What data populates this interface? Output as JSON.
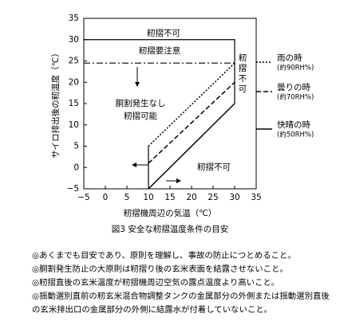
{
  "chart_data": {
    "type": "line",
    "title": "図3 安全な籾摺温度条件の目安",
    "x_label": "籾摺機周辺の気温（℃）",
    "y_label": "サイロ排出後の籾温度（℃）",
    "xlim": [
      -5,
      35
    ],
    "ylim": [
      -5,
      35
    ],
    "xticks": [
      {
        "value": -5,
        "label": "−5"
      },
      0,
      5,
      10,
      15,
      20,
      25,
      30,
      35
    ],
    "yticks": [
      {
        "value": -5,
        "label": "−5"
      },
      0,
      5,
      10,
      15,
      20,
      25,
      30,
      35
    ],
    "series": [
      {
        "name": "雨の時",
        "sub": "(約90RH%)",
        "dash": "2,2",
        "x": [
          10,
          30
        ],
        "values": [
          5,
          24.5
        ]
      },
      {
        "name": "曇りの時",
        "sub": "(約70RH%)",
        "dash": "6,3",
        "x": [
          10,
          30
        ],
        "values": [
          1,
          20
        ]
      },
      {
        "name": "快晴の時",
        "sub": "(約50RH%)",
        "dash": "none",
        "x": [
          10,
          30
        ],
        "values": [
          -5,
          15
        ]
      }
    ],
    "boundaries": [
      {
        "dash": "none",
        "x": [
          10,
          10
        ],
        "values": [
          -5,
          5
        ]
      },
      {
        "dash": "none",
        "x": [
          -5,
          30,
          30,
          30
        ],
        "values": [
          30,
          30,
          30,
          15
        ]
      },
      {
        "dash": "8,3,2,3",
        "x": [
          -5,
          30
        ],
        "values": [
          24.5,
          24.5
        ]
      }
    ],
    "annotations": [
      {
        "lines": [
          "籾摺不可"
        ]
      },
      {
        "lines": [
          "籾摺要注意"
        ]
      },
      {
        "lines": [
          "胴割発生なし",
          "籾摺可能"
        ]
      },
      {
        "lines": [
          "籾",
          "摺",
          "不",
          "可"
        ]
      },
      {
        "lines": [
          "籾摺不可"
        ]
      }
    ]
  },
  "notes": [
    "◎あくまでも目安であり、原則を理解し、事故の防止につとめること。",
    "◎胴割発生防止の大原則は籾摺り後の玄米表面を結露させないこと。",
    "◎籾摺直後の玄米温度が籾摺機周辺空気の露点温度より高いこと。",
    "◎揺動選別直前の籾玄米混合物調整タンクの金属部分の外側または揺動選別直後の玄米排出口の金属部分の外側に結露水が付着していないこと。"
  ]
}
